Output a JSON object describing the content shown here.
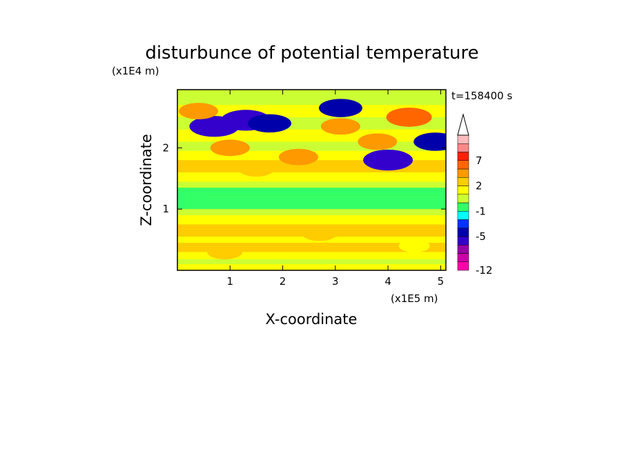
{
  "chart_data": {
    "type": "heatmap",
    "title": "disturbunce of potential temperature",
    "xlabel": "X-coordinate",
    "ylabel": "Z-coordinate",
    "x_unit": "(x1E5 m)",
    "y_unit": "(x1E4 m)",
    "time_label": "t=158400 s",
    "xlim": [
      0,
      5.1
    ],
    "ylim": [
      0,
      2.95
    ],
    "x_ticks": [
      "1",
      "2",
      "3",
      "4",
      "5"
    ],
    "y_ticks": [
      "1",
      "2"
    ],
    "x_tick_values": [
      1,
      2,
      3,
      4,
      5
    ],
    "y_tick_values": [
      1,
      2
    ],
    "colorbar": {
      "levels": [
        -12,
        -10,
        -8,
        -6,
        -5,
        -4,
        -3,
        -1,
        0,
        1,
        2,
        3,
        5,
        7,
        9,
        11
      ],
      "tick_labels": [
        "-12",
        "-5",
        "-1",
        "2",
        "7"
      ],
      "tick_values": [
        -12,
        -5,
        -1,
        2,
        7
      ],
      "colors": [
        "#ff00aa",
        "#cc00aa",
        "#9900aa",
        "#3300cc",
        "#0000aa",
        "#0033ff",
        "#00ffff",
        "#33ff66",
        "#ccff33",
        "#ffff00",
        "#ffcc00",
        "#ff9900",
        "#ff6600",
        "#ff2200",
        "#ff8888",
        "#ffbbbb"
      ],
      "extend": "max",
      "extend_color": "#ffffff"
    },
    "bands": [
      {
        "z": [
          0.0,
          0.1
        ],
        "value": 1.5
      },
      {
        "z": [
          0.1,
          0.18
        ],
        "value": 0.5
      },
      {
        "z": [
          0.18,
          0.3
        ],
        "value": 1.5
      },
      {
        "z": [
          0.3,
          0.45
        ],
        "value": 2.5
      },
      {
        "z": [
          0.45,
          0.55
        ],
        "value": 1.5
      },
      {
        "z": [
          0.55,
          0.75
        ],
        "value": 2.5
      },
      {
        "z": [
          0.75,
          0.9
        ],
        "value": 1.5
      },
      {
        "z": [
          0.9,
          1.0
        ],
        "value": 0.5
      },
      {
        "z": [
          1.0,
          1.2
        ],
        "value": -0.5
      },
      {
        "z": [
          1.2,
          1.35
        ],
        "value": -0.5
      },
      {
        "z": [
          1.35,
          1.45
        ],
        "value": 0.5
      },
      {
        "z": [
          1.45,
          1.6
        ],
        "value": 1.5
      },
      {
        "z": [
          1.6,
          1.8
        ],
        "value": 2.5
      },
      {
        "z": [
          1.8,
          1.95
        ],
        "value": 1.5
      },
      {
        "z": [
          1.95,
          2.1
        ],
        "value": 0.5
      },
      {
        "z": [
          2.1,
          2.3
        ],
        "value": 1.5
      },
      {
        "z": [
          2.3,
          2.5
        ],
        "value": 0.5
      },
      {
        "z": [
          2.5,
          2.7
        ],
        "value": 1.5
      },
      {
        "z": [
          2.7,
          2.95
        ],
        "value": 0.5
      }
    ],
    "blobs": [
      {
        "x": 0.7,
        "z": 2.35,
        "value": -6
      },
      {
        "x": 1.3,
        "z": 2.45,
        "value": -6
      },
      {
        "x": 1.75,
        "z": 2.4,
        "value": -4.5
      },
      {
        "x": 3.1,
        "z": 2.65,
        "value": -4.5
      },
      {
        "x": 4.0,
        "z": 1.8,
        "value": -6
      },
      {
        "x": 4.9,
        "z": 2.1,
        "value": -4.5
      },
      {
        "x": 0.4,
        "z": 2.6,
        "value": 3.5
      },
      {
        "x": 1.0,
        "z": 2.0,
        "value": 3.5
      },
      {
        "x": 2.3,
        "z": 1.85,
        "value": 3.5
      },
      {
        "x": 3.1,
        "z": 2.35,
        "value": 3.5
      },
      {
        "x": 4.4,
        "z": 2.5,
        "value": 5
      },
      {
        "x": 3.8,
        "z": 2.1,
        "value": 3.5
      },
      {
        "x": 1.5,
        "z": 1.65,
        "value": 2.5
      },
      {
        "x": 0.3,
        "z": 1.2,
        "value": -0.5
      },
      {
        "x": 2.7,
        "z": 0.6,
        "value": 2.5
      },
      {
        "x": 0.9,
        "z": 0.3,
        "value": 2.5
      },
      {
        "x": 4.5,
        "z": 0.4,
        "value": 1.5
      }
    ]
  }
}
